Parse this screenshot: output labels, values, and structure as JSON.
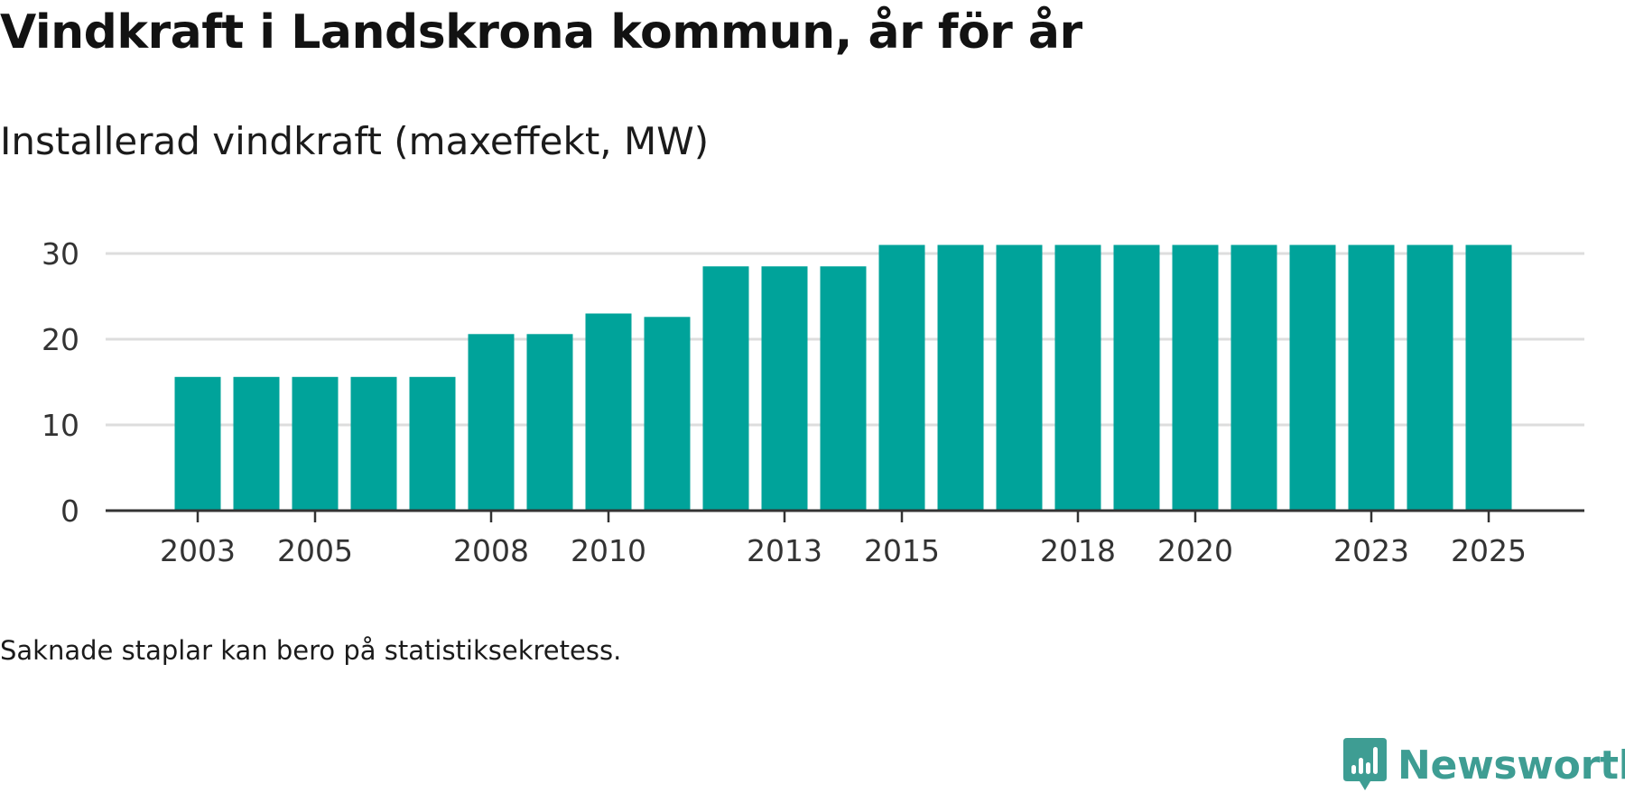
{
  "title": "Vindkraft i Landskrona kommun, år för år",
  "subtitle": "Installerad vindkraft (maxeffekt, MW)",
  "footnote": "Saknade staplar kan bero på statistiksekretess.",
  "brand": {
    "name": "Newsworthy",
    "icon": "newsworthy-logo-icon",
    "color": "#3e9d93"
  },
  "colors": {
    "bar": "#00a39a",
    "grid": "#dddddd",
    "axis": "#333333"
  },
  "chart_data": {
    "type": "bar",
    "title": "Vindkraft i Landskrona kommun, år för år",
    "subtitle": "Installerad vindkraft (maxeffekt, MW)",
    "xlabel": "",
    "ylabel": "",
    "categories": [
      "2003",
      "2004",
      "2005",
      "2006",
      "2007",
      "2008",
      "2009",
      "2010",
      "2011",
      "2012",
      "2013",
      "2014",
      "2015",
      "2016",
      "2017",
      "2018",
      "2019",
      "2020",
      "2021",
      "2022",
      "2023",
      "2024",
      "2025"
    ],
    "values": [
      15.6,
      15.6,
      15.6,
      15.6,
      15.6,
      20.6,
      20.6,
      23.0,
      22.6,
      28.5,
      28.5,
      28.5,
      31.0,
      31.0,
      31.0,
      31.0,
      31.0,
      31.0,
      31.0,
      31.0,
      31.0,
      31.0,
      31.0
    ],
    "x_tick_labels": [
      "2003",
      "2005",
      "2008",
      "2010",
      "2013",
      "2015",
      "2018",
      "2020",
      "2023",
      "2025"
    ],
    "y_ticks": [
      0,
      10,
      20,
      30
    ],
    "ylim": [
      0,
      31.5
    ],
    "grid": true,
    "legend": "none"
  }
}
